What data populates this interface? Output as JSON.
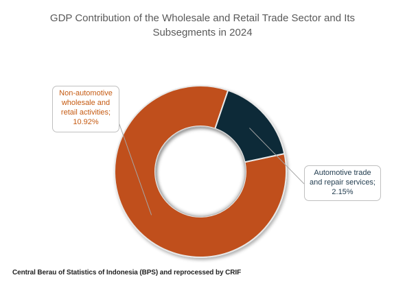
{
  "title": {
    "line1": "GDP Contribution of the Wholesale and Retail Trade Sector and Its",
    "line2": "Subsegments in 2024"
  },
  "source": "Central Berau of Statistics of Indonesia (BPS) and reprocessed by CRIF",
  "colors": {
    "non_automotive": "#c0501a",
    "automotive": "#0e2a38",
    "label_non_automotive": "#c55a11",
    "label_automotive": "#1f3a4d",
    "title": "#595959"
  },
  "chart_data": {
    "type": "pie",
    "subtype": "donut",
    "title": "GDP Contribution of the Wholesale and Retail Trade Sector and Its Subsegments in 2024",
    "unit": "%",
    "slices": [
      {
        "label_lines": [
          "Non-automotive",
          "wholesale and",
          "retail activities;",
          "10.92%"
        ],
        "value": 10.92,
        "color": "#c0501a"
      },
      {
        "label_lines": [
          "Automotive trade",
          "and repair services;",
          "2.15%"
        ],
        "value": 2.15,
        "color": "#0e2a38"
      }
    ]
  }
}
